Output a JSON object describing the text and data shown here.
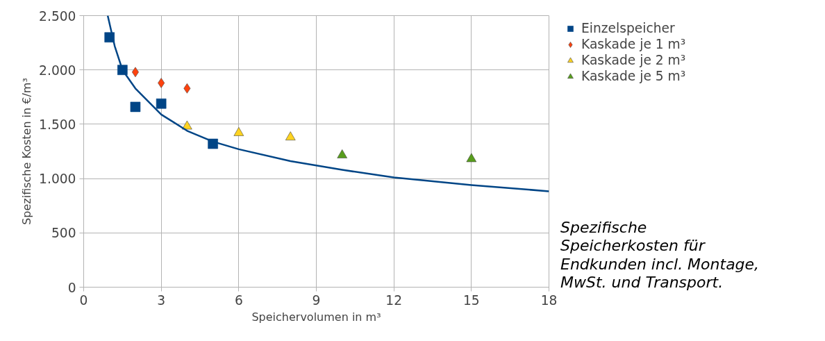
{
  "chart_data": {
    "type": "scatter",
    "xlabel": "Speichervolumen in m³",
    "ylabel": "Spezifische Kosten in €/m³",
    "xlim": [
      0,
      18
    ],
    "xticks": [
      0,
      3,
      6,
      9,
      12,
      15,
      18
    ],
    "ylim": [
      0,
      2500
    ],
    "yticks": [
      {
        "value": 0,
        "label": "0"
      },
      {
        "value": 500,
        "label": "500"
      },
      {
        "value": 1000,
        "label": "1.000"
      },
      {
        "value": 1500,
        "label": "1.500"
      },
      {
        "value": 2000,
        "label": "2.000"
      },
      {
        "value": 2500,
        "label": "2.500"
      }
    ],
    "grid": true,
    "legend": "top right",
    "annotations": [
      "Spezifische Speicherkosten für Endkunden incl. Montage, MwSt. und Transport."
    ],
    "series": [
      {
        "name": "Einzelspeicher",
        "color": "#004586",
        "marker": "square",
        "x": [
          1,
          1.5,
          2,
          3,
          5
        ],
        "values": [
          2300,
          2000,
          1660,
          1690,
          1320
        ]
      },
      {
        "name": "Kaskade je 1 m³",
        "color": "#ff420e",
        "marker": "diamond",
        "x": [
          2,
          3,
          4
        ],
        "values": [
          1980,
          1880,
          1830
        ]
      },
      {
        "name": "Kaskade je 2 m³",
        "color": "#ffd320",
        "marker": "triangle",
        "x": [
          4,
          6,
          8
        ],
        "values": [
          1480,
          1420,
          1380
        ]
      },
      {
        "name": "Kaskade je 5 m³",
        "color": "#579d1c",
        "marker": "triangle",
        "x": [
          10,
          15
        ],
        "values": [
          1215,
          1180
        ]
      },
      {
        "type": "line",
        "color": "#004586",
        "x": [
          0.93,
          1.2,
          1.5,
          2,
          3,
          4,
          5,
          6,
          8,
          10,
          12,
          15,
          18
        ],
        "values": [
          2500,
          2220,
          2000,
          1830,
          1590,
          1440,
          1340,
          1270,
          1160,
          1080,
          1010,
          940,
          883
        ]
      }
    ]
  }
}
